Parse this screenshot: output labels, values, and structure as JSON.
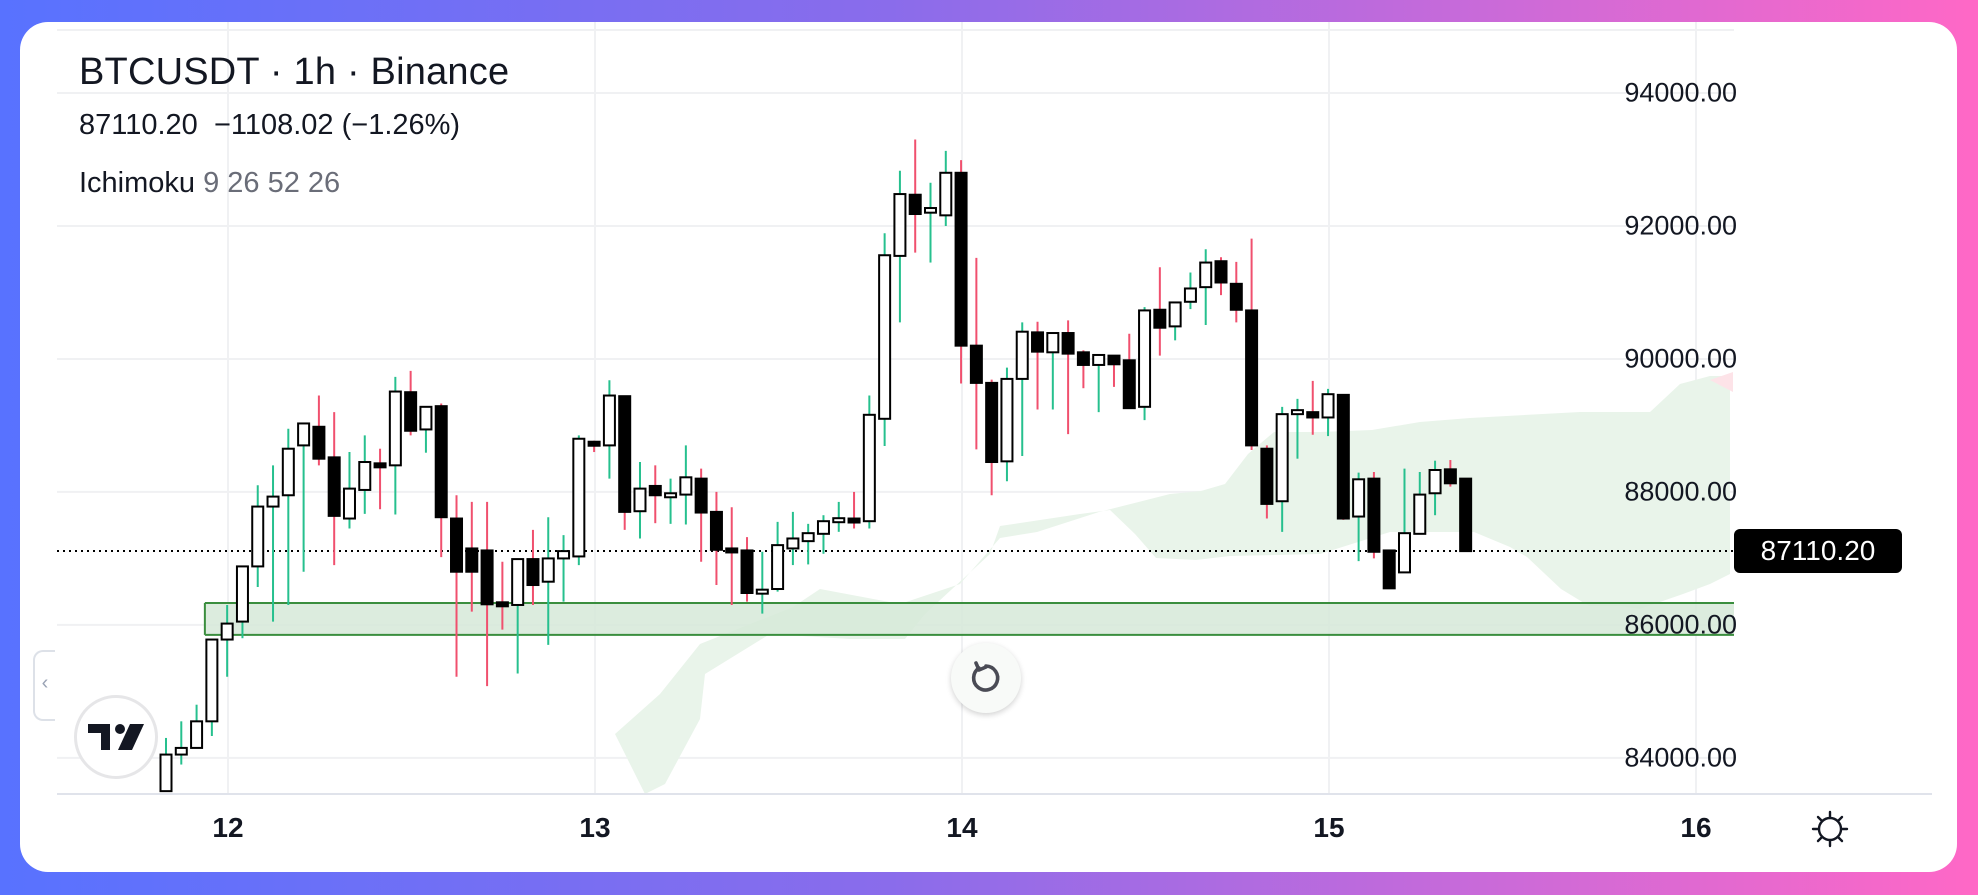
{
  "legend": {
    "title": "BTCUSDT · 1h · Binance",
    "last_price": "87110.20",
    "change": "−1108.02 (−1.26%)",
    "indicator_name": "Ichimoku",
    "indicator_params": "9 26 52 26"
  },
  "price_axis": {
    "labels": [
      "94000.00",
      "92000.00",
      "90000.00",
      "88000.00",
      "86000.00",
      "84000.00"
    ],
    "last_price_label": "87110.20"
  },
  "time_axis": {
    "labels": [
      "12",
      "13",
      "14",
      "15",
      "16"
    ]
  },
  "colors": {
    "up_wick": "#26C08E",
    "down_wick": "#F0506E",
    "up_body": "#FFFFFF",
    "down_body": "#000000",
    "candle_border": "#000000",
    "cloud_bull": "#E9F4EA",
    "cloud_bear": "#FDE3E8",
    "zone_fill": "#D6E9D8",
    "zone_border": "#3A8E3E",
    "last_price_bg": "#000000"
  },
  "icons": {
    "logo": "tradingview-logo-icon",
    "replay": "reset-chart-icon",
    "settings": "gear-icon",
    "collapse": "chevron-left-icon"
  },
  "chart_data": {
    "type": "candlestick",
    "title": "BTCUSDT · 1h · Binance",
    "xlabel": "",
    "ylabel": "",
    "ylim": [
      83500,
      94400
    ],
    "y_ticks": [
      84000,
      86000,
      88000,
      90000,
      92000,
      94000
    ],
    "x_ticks": [
      "12",
      "13",
      "14",
      "15",
      "16"
    ],
    "grid": true,
    "last_price": 87110.2,
    "change": -1108.02,
    "change_pct": -1.26,
    "indicator": {
      "name": "Ichimoku",
      "params": [
        9,
        26,
        52,
        26
      ]
    },
    "support_zone": {
      "low": 85850,
      "high": 86330,
      "start_candle": 3
    },
    "candles_ohlc": [
      [
        83500,
        84050,
        83500,
        84300
      ],
      [
        84050,
        84150,
        83900,
        84550
      ],
      [
        84150,
        84550,
        84150,
        84800
      ],
      [
        84550,
        85780,
        84330,
        85780
      ],
      [
        85780,
        86020,
        85220,
        86300
      ],
      [
        86050,
        86880,
        85800,
        86600
      ],
      [
        86880,
        87780,
        86570,
        88100
      ],
      [
        87780,
        87930,
        86050,
        88400
      ],
      [
        87950,
        88650,
        86300,
        88950
      ],
      [
        88700,
        89030,
        86800,
        89030
      ],
      [
        88980,
        88500,
        88400,
        89450
      ],
      [
        88520,
        87640,
        86900,
        89200
      ],
      [
        87600,
        88050,
        87450,
        88600
      ],
      [
        88030,
        88450,
        87670,
        88850
      ],
      [
        88420,
        88380,
        87740,
        88650
      ],
      [
        88400,
        89510,
        87660,
        89730
      ],
      [
        89500,
        88920,
        88850,
        89820
      ],
      [
        88940,
        89280,
        88590,
        89280
      ],
      [
        89290,
        87620,
        87020,
        89330
      ],
      [
        87600,
        86800,
        85220,
        87950
      ],
      [
        87150,
        86800,
        86200,
        87850
      ],
      [
        87120,
        86310,
        85080,
        87850
      ],
      [
        86320,
        86300,
        85930,
        86950
      ],
      [
        86300,
        86990,
        85270,
        86990
      ],
      [
        86990,
        86600,
        86300,
        87430
      ],
      [
        86650,
        87000,
        85700,
        87620
      ],
      [
        87000,
        87110,
        86350,
        87350
      ],
      [
        87030,
        88800,
        86900,
        88850
      ],
      [
        88750,
        88700,
        88600,
        88770
      ],
      [
        88700,
        89450,
        88200,
        89680
      ],
      [
        89440,
        87700,
        87430,
        89440
      ],
      [
        87710,
        88050,
        87300,
        88450
      ],
      [
        88090,
        87950,
        87530,
        88400
      ],
      [
        87950,
        87950,
        87520,
        88200
      ],
      [
        87960,
        88220,
        87510,
        88700
      ],
      [
        88200,
        87690,
        86950,
        88350
      ],
      [
        87700,
        87130,
        86600,
        88000
      ],
      [
        87130,
        87110,
        86300,
        87770
      ],
      [
        87120,
        86480,
        86350,
        87320
      ],
      [
        86500,
        86500,
        86170,
        87100
      ],
      [
        86540,
        87200,
        86500,
        87550
      ],
      [
        87150,
        87300,
        86900,
        87700
      ],
      [
        87260,
        87380,
        86910,
        87520
      ],
      [
        87370,
        87560,
        87070,
        87650
      ],
      [
        87570,
        87580,
        87400,
        87850
      ],
      [
        87580,
        87560,
        87450,
        88000
      ],
      [
        87560,
        89160,
        87450,
        89450
      ],
      [
        89100,
        91560,
        88690,
        91890
      ],
      [
        91550,
        92480,
        90550,
        92830
      ],
      [
        92470,
        92180,
        91600,
        93300
      ],
      [
        92200,
        92270,
        91450,
        92650
      ],
      [
        92160,
        92800,
        92000,
        93130
      ],
      [
        92800,
        90200,
        89630,
        92990
      ],
      [
        90200,
        89640,
        88640,
        91520
      ],
      [
        89640,
        88450,
        87950,
        89690
      ],
      [
        88460,
        89700,
        88160,
        89870
      ],
      [
        89700,
        90410,
        88540,
        90550
      ],
      [
        90400,
        90110,
        89240,
        90560
      ],
      [
        90100,
        90390,
        89240,
        90390
      ],
      [
        90390,
        90080,
        88870,
        90580
      ],
      [
        90100,
        89910,
        89560,
        90130
      ],
      [
        89910,
        90060,
        89200,
        90040
      ],
      [
        90050,
        89920,
        89580,
        90050
      ],
      [
        89980,
        89260,
        89260,
        90380
      ],
      [
        89280,
        90730,
        89080,
        90780
      ],
      [
        90740,
        90470,
        90050,
        91380
      ],
      [
        90490,
        90850,
        90280,
        90850
      ],
      [
        90860,
        91060,
        90750,
        91300
      ],
      [
        91080,
        91450,
        90510,
        91650
      ],
      [
        91470,
        91150,
        90960,
        91530
      ],
      [
        91130,
        90740,
        90550,
        91460
      ],
      [
        90730,
        88700,
        88630,
        91810
      ],
      [
        88650,
        87820,
        87600,
        88700
      ],
      [
        87860,
        89170,
        87400,
        89280
      ],
      [
        89200,
        89200,
        88500,
        89400
      ],
      [
        89200,
        89120,
        88860,
        89670
      ],
      [
        89120,
        89470,
        88840,
        89550
      ],
      [
        89460,
        87600,
        87580,
        89470
      ],
      [
        87630,
        88190,
        86960,
        88290
      ],
      [
        88200,
        87100,
        87000,
        88300
      ],
      [
        87120,
        86550,
        86640,
        86870
      ],
      [
        86790,
        87380,
        86980,
        88350
      ],
      [
        87370,
        87960,
        87420,
        88300
      ],
      [
        87980,
        88330,
        87650,
        88470
      ],
      [
        88340,
        88130,
        88080,
        88480
      ],
      [
        88200,
        87110,
        87100,
        88200
      ]
    ],
    "cloud_span": {
      "upper": [
        [
          645,
          0
        ],
        [
          665,
          -10
        ],
        [
          700,
          -75
        ],
        [
          705,
          -120
        ],
        [
          770,
          -160
        ],
        [
          850,
          -155
        ],
        [
          905,
          -155
        ],
        [
          925,
          -180
        ],
        [
          990,
          -240
        ],
        [
          1000,
          -268
        ],
        [
          1080,
          -280
        ],
        [
          1110,
          -284
        ],
        [
          1135,
          -260
        ],
        [
          1156,
          -236
        ],
        [
          1196,
          -234
        ],
        [
          1230,
          -238
        ],
        [
          1320,
          -240
        ],
        [
          1390,
          -262
        ],
        [
          1455,
          -262
        ],
        [
          1474,
          -262
        ],
        [
          1510,
          -247
        ],
        [
          1527,
          -237
        ],
        [
          1561,
          -205
        ],
        [
          1589,
          -188
        ],
        [
          1620,
          -188
        ],
        [
          1640,
          -185
        ],
        [
          1683,
          -200
        ],
        [
          1710,
          -210
        ],
        [
          1730,
          -220
        ]
      ],
      "lower": [
        [
          645,
          0
        ],
        [
          615,
          -60
        ],
        [
          660,
          -100
        ],
        [
          700,
          -150
        ],
        [
          793,
          -187
        ],
        [
          820,
          -205
        ],
        [
          900,
          -190
        ],
        [
          960,
          -210
        ],
        [
          1000,
          -256
        ],
        [
          1037,
          -262
        ],
        [
          1099,
          -282
        ],
        [
          1170,
          -300
        ],
        [
          1201,
          -303
        ],
        [
          1225,
          -310
        ],
        [
          1248,
          -340
        ],
        [
          1274,
          -362
        ],
        [
          1320,
          -362
        ],
        [
          1372,
          -364
        ],
        [
          1420,
          -372
        ],
        [
          1470,
          -376
        ],
        [
          1580,
          -382
        ],
        [
          1650,
          -382
        ],
        [
          1680,
          -410
        ],
        [
          1710,
          -418
        ],
        [
          1730,
          -418
        ]
      ]
    }
  }
}
